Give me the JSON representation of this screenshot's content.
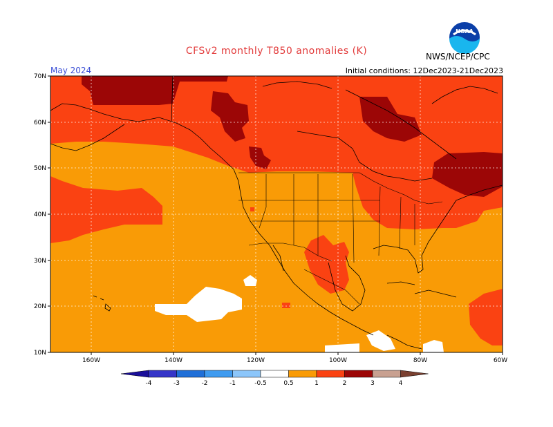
{
  "header": {
    "title": "CFSv2 monthly T850 anomalies (K)",
    "month": "May 2024",
    "initial_conditions": "Initial conditions: 12Dec2023-21Dec2023",
    "agency": "NWS/NCEP/CPC",
    "logo_text": "NOAA"
  },
  "axes": {
    "lat_labels": [
      "70N",
      "60N",
      "50N",
      "40N",
      "30N",
      "20N",
      "10N"
    ],
    "lon_labels": [
      "160W",
      "140W",
      "120W",
      "100W",
      "80W",
      "60W"
    ]
  },
  "legend": {
    "labels": [
      "-4",
      "-3",
      "-2",
      "-1",
      "-0.5",
      "0.5",
      "1",
      "2",
      "3",
      "4"
    ],
    "colors": [
      "#1a0f9a",
      "#3535c8",
      "#1f6fd8",
      "#3f9bf0",
      "#8cc6fa",
      "#ffffff",
      "#f99b06",
      "#fa4212",
      "#9c0606",
      "#c8a090",
      "#7a4030"
    ]
  },
  "fill_colors": {
    "anomaly_0_5_to_1": "#f99b06",
    "anomaly_1_to_2": "#fa4212",
    "anomaly_2_to_3": "#9c0606",
    "near_zero": "#ffffff"
  }
}
